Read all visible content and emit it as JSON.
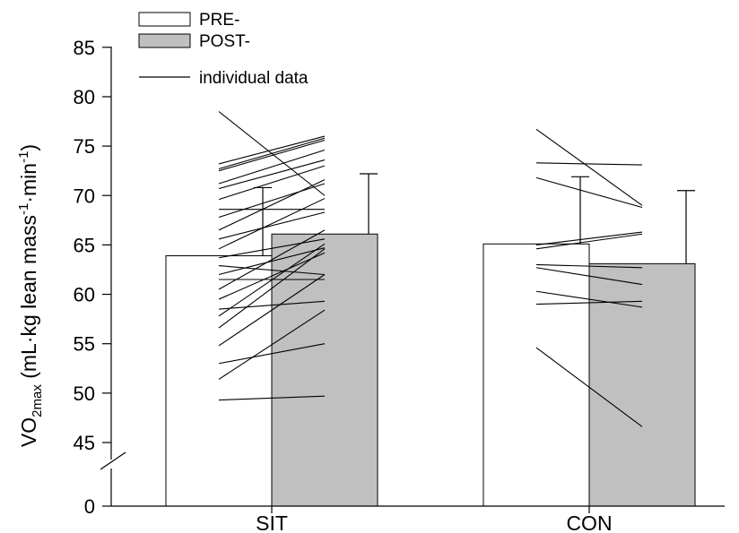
{
  "chart_data": {
    "type": "bar",
    "categories": [
      "SIT",
      "CON"
    ],
    "series": [
      {
        "name": "PRE-",
        "values": [
          63.9,
          65.1
        ],
        "error": [
          6.9,
          6.8
        ],
        "color": "#ffffff"
      },
      {
        "name": "POST-",
        "values": [
          66.1,
          63.1
        ],
        "error": [
          6.1,
          7.4
        ],
        "color": "#c0c0c0"
      }
    ],
    "individual_data_label": "individual data",
    "individual_lines": {
      "SIT": [
        [
          78.5,
          70.0
        ],
        [
          73.2,
          76.0
        ],
        [
          72.7,
          75.8
        ],
        [
          72.5,
          75.6
        ],
        [
          71.2,
          74.6
        ],
        [
          70.7,
          73.6
        ],
        [
          69.6,
          73.0
        ],
        [
          68.6,
          68.6
        ],
        [
          67.8,
          71.2
        ],
        [
          66.5,
          71.6
        ],
        [
          65.6,
          68.3
        ],
        [
          64.6,
          69.7
        ],
        [
          63.7,
          65.6
        ],
        [
          62.9,
          62.0
        ],
        [
          62.0,
          64.7
        ],
        [
          61.5,
          61.5
        ],
        [
          60.5,
          66.5
        ],
        [
          59.5,
          64.2
        ],
        [
          58.5,
          59.3
        ],
        [
          57.8,
          65.1
        ],
        [
          56.6,
          64.6
        ],
        [
          54.8,
          62.0
        ],
        [
          53.0,
          55.0
        ],
        [
          51.4,
          58.4
        ],
        [
          49.3,
          49.7
        ]
      ],
      "CON": [
        [
          76.7,
          69.0
        ],
        [
          73.3,
          73.1
        ],
        [
          71.8,
          68.8
        ],
        [
          65.0,
          66.3
        ],
        [
          64.6,
          66.1
        ],
        [
          63.0,
          62.7
        ],
        [
          62.7,
          61.0
        ],
        [
          60.3,
          58.7
        ],
        [
          59.0,
          59.3
        ],
        [
          54.6,
          46.6
        ]
      ]
    },
    "yticks": [
      "0",
      "45",
      "50",
      "55",
      "60",
      "65",
      "70",
      "75",
      "80",
      "85"
    ],
    "ylim": [
      40,
      85
    ],
    "y_axis_break": true,
    "ylabel": {
      "main": "VO",
      "sub": "2max",
      "rest_1": " (mL·kg lean mass",
      "sup_1": "-1",
      "rest_2": "·min",
      "sup_2": "-1",
      "close": ")"
    },
    "legend_position": "top-left",
    "grid": false
  }
}
